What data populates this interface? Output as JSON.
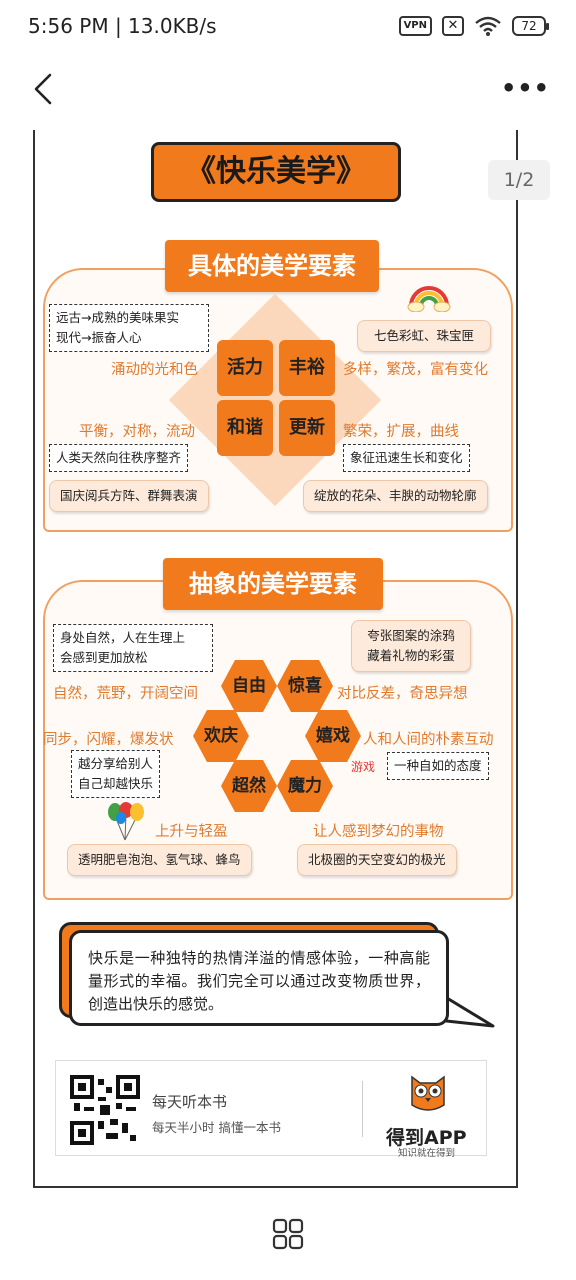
{
  "status_bar": {
    "time": "5:56 PM | 13.0KB/s",
    "vpn": "VPN",
    "x_icon": "✕",
    "battery": "72"
  },
  "viewer": {
    "page_indicator": "1/2"
  },
  "poster": {
    "title": "《快乐美学》",
    "concrete": {
      "title": "具体的美学要素",
      "squares": [
        "活力",
        "丰裕",
        "和谐",
        "更新"
      ],
      "tags": {
        "top_left": [
          "远古→成熟的美味果实",
          "现代→振奋人心"
        ],
        "top_right": "七色彩虹、珠宝匣",
        "mid_left": "人类天然向往秩序整齐",
        "mid_right": "象征迅速生长和变化",
        "bot_left": "国庆阅兵方阵、群舞表演",
        "bot_right": "绽放的花朵、丰腴的动物轮廓"
      },
      "keywords": {
        "vitality": "涌动的光和色",
        "abundance": "多样，繁茂，富有变化",
        "harmony": "平衡，对称，流动",
        "renewal": "繁荣，扩展，曲线"
      }
    },
    "abstract": {
      "title": "抽象的美学要素",
      "hexes": [
        "自由",
        "惊喜",
        "欢庆",
        "嬉戏",
        "超然",
        "魔力"
      ],
      "tags": {
        "top_left": [
          "身处自然，人在生理上",
          "会感到更加放松"
        ],
        "top_right": [
          "夸张图案的涂鸦",
          "藏着礼物的彩蛋"
        ],
        "mid_left": [
          "越分享给别人",
          "自己却越快乐"
        ],
        "mid_right": "一种自如的态度",
        "bot_left": "透明肥皂泡泡、氢气球、蜂鸟",
        "bot_right": "北极圈的天空变幻的极光"
      },
      "keywords": {
        "freedom": "自然，荒野，开阔空间",
        "surprise": "对比反差，奇思异想",
        "celebration": "同步，闪耀，爆发状",
        "play": "人和人间的朴素互动",
        "play_label": "游戏",
        "transcendence": "上升与轻盈",
        "magic": "让人感到梦幻的事物"
      }
    },
    "quote": "快乐是一种独特的热情洋溢的情感体验，一种高能量形式的幸福。我们完全可以通过改变物质世界，创造出快乐的感觉。",
    "footer": {
      "line1": "每天听本书",
      "line2": "每天半小时  搞懂一本书",
      "brand": "得到APP",
      "slogan": "知识就在得到"
    }
  },
  "colors": {
    "accent": "#f07a1c",
    "light": "#fdeadb",
    "keyword": "#e07a2e"
  }
}
